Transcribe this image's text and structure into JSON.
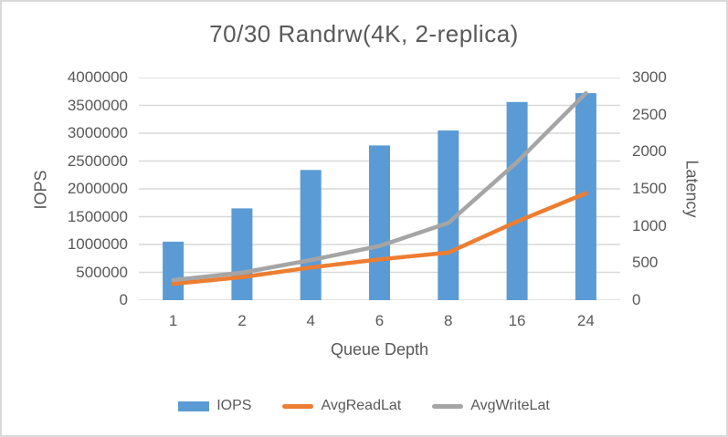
{
  "chart_data": {
    "type": "bar",
    "subtype": "combo-bar-line-dual-axis",
    "title": "70/30 Randrw(4K, 2-replica)",
    "categories": [
      "1",
      "2",
      "4",
      "6",
      "8",
      "16",
      "24"
    ],
    "xlabel": "Queue Depth",
    "left_axis": {
      "label": "IOPS",
      "min": 0,
      "max": 4000000,
      "step": 500000
    },
    "right_axis": {
      "label": "Latency",
      "min": 0,
      "max": 3000,
      "step": 500
    },
    "grid": true,
    "legend_position": "bottom",
    "series": [
      {
        "name": "IOPS",
        "type": "bar",
        "axis": "left",
        "color": "#5b9bd5",
        "values": [
          1050000,
          1650000,
          2340000,
          2780000,
          3050000,
          3560000,
          3720000
        ]
      },
      {
        "name": "AvgReadLat",
        "type": "line",
        "axis": "right",
        "color": "#ed7d31",
        "values": [
          220,
          310,
          440,
          550,
          640,
          1060,
          1440
        ]
      },
      {
        "name": "AvgWriteLat",
        "type": "line",
        "axis": "right",
        "color": "#a5a5a5",
        "values": [
          270,
          370,
          540,
          730,
          1040,
          1860,
          2790
        ]
      }
    ],
    "colors": {
      "gridline": "#d9d9d9",
      "text": "#595959",
      "background": "#ffffff",
      "frame_border": "#d9d9d9"
    }
  }
}
